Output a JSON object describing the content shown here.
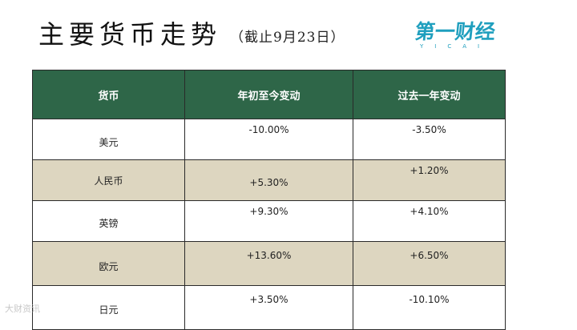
{
  "title": "主要货币走势",
  "subtitle": "（截止9月23日）",
  "logo": {
    "main": "第一财经",
    "sub": "YICAI"
  },
  "table": {
    "headers": [
      "货币",
      "年初至今变动",
      "过去一年变动"
    ],
    "rows": [
      {
        "currency": "美元",
        "ytd": "-10.00%",
        "one_year": "-3.50%"
      },
      {
        "currency": "人民币",
        "ytd": "+5.30%",
        "one_year": "+1.20%"
      },
      {
        "currency": "英镑",
        "ytd": "+9.30%",
        "one_year": "+4.10%"
      },
      {
        "currency": "欧元",
        "ytd": "+13.60%",
        "one_year": "+6.50%"
      },
      {
        "currency": "日元",
        "ytd": "+3.50%",
        "one_year": "-10.10%"
      }
    ]
  },
  "colors": {
    "header_bg": "#2e6648",
    "alt_row_bg": "#ddd6c0",
    "logo": "#1f9fbe"
  },
  "watermark": "大财资讯"
}
